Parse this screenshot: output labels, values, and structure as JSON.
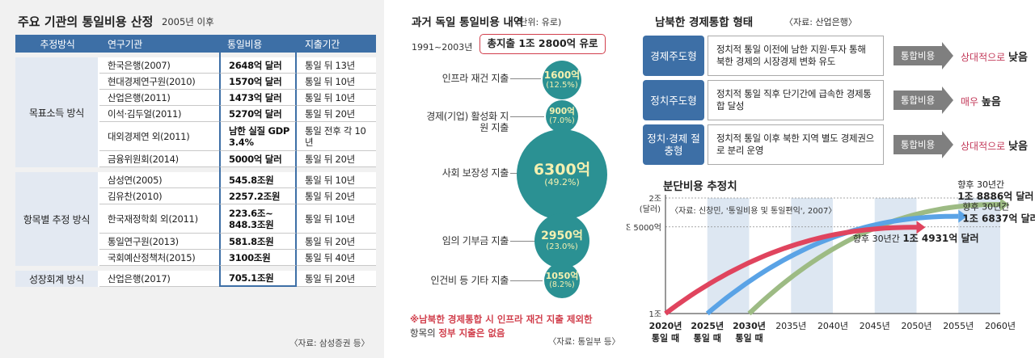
{
  "left": {
    "title": "주요 기관의 통일비용 산정",
    "subtitle": "2005년 이후",
    "headers": [
      "추정방식",
      "연구기관",
      "통일비용",
      "지출기간"
    ],
    "groups": [
      {
        "method": "목표소득 방식",
        "rows": [
          {
            "org": "한국은행(2007)",
            "cost": "2648억 달러",
            "period": "통일 뒤 13년"
          },
          {
            "org": "현대경제연구원(2010)",
            "cost": "1570억 달러",
            "period": "통일 뒤 10년"
          },
          {
            "org": "산업은행(2011)",
            "cost": "1473억 달러",
            "period": "통일 뒤 10년"
          },
          {
            "org": "이석·김두얼(2011)",
            "cost": "5270억 달러",
            "period": "통일 뒤 20년"
          },
          {
            "org": "대외경제연 외(2011)",
            "cost": "남한 실질 GDP 3.4%",
            "period": "통일 전후 각 10년"
          },
          {
            "org": "금융위원회(2014)",
            "cost": "5000억 달러",
            "period": "통일 뒤 20년"
          }
        ]
      },
      {
        "method": "항목별 추정 방식",
        "rows": [
          {
            "org": "삼성연(2005)",
            "cost": "545.8조원",
            "period": "통일 뒤 10년"
          },
          {
            "org": "김유찬(2010)",
            "cost": "2257.2조원",
            "period": "통일 뒤 20년"
          },
          {
            "org": "한국재정학회 외(2011)",
            "cost": "223.6조~ 848.3조원",
            "period": "통일 뒤 10년"
          },
          {
            "org": "통일연구원(2013)",
            "cost": "581.8조원",
            "period": "통일 뒤 20년"
          },
          {
            "org": "국회예산정책처(2015)",
            "cost": "3100조원",
            "period": "통일 뒤 40년"
          }
        ]
      },
      {
        "method": "성장회계 방식",
        "rows": [
          {
            "org": "산업은행(2017)",
            "cost": "705.1조원",
            "period": "통일 뒤 20년"
          }
        ]
      }
    ],
    "source": "〈자료: 삼성증권 등〉"
  },
  "middle": {
    "title": "과거 독일 통일비용 내역",
    "unit": "(단위: 유로)",
    "period": "1991~2003년",
    "total": "총지출 1조 2800억 유로",
    "items": [
      {
        "label": "인프라 재건 지출",
        "value": "1600억",
        "pct": "(12.5%)",
        "amount": 1600
      },
      {
        "label": "경제(기업) 활성화 지원 지출",
        "value": "900억",
        "pct": "(7.0%)",
        "amount": 900
      },
      {
        "label": "사회 보장성 지출",
        "value": "6300억",
        "pct": "(49.2%)",
        "amount": 6300
      },
      {
        "label": "임의 기부금 지출",
        "value": "2950억",
        "pct": "(23.0%)",
        "amount": 2950
      },
      {
        "label": "인건비 등 기타 지출",
        "value": "1050억",
        "pct": "(8.2%)",
        "amount": 1050
      }
    ],
    "note_red": "※남북한 경제통합 시 인프라 재건 지출 제외한",
    "note_line2_a": "항목의 ",
    "note_line2_b": "정부 지출은 없음",
    "source": "〈자료: 통일부 등〉"
  },
  "right": {
    "title": "남북한 경제통합 형태",
    "source": "〈자료: 산업은행〉",
    "forms": [
      {
        "key": "경제주도형",
        "desc": "정치적 통일 이전에 남한 지원·투자 통해 북한 경제의 시장경제 변화 유도",
        "arrow": "통합비용",
        "result_pre": "상대적으로 ",
        "result_bold": "낮음"
      },
      {
        "key": "정치주도형",
        "desc": "정치적 통일 직후 단기간에 급속한 경제통합 달성",
        "arrow": "통합비용",
        "result_pre": "매우 ",
        "result_bold": "높음"
      },
      {
        "key": "정치·경제 절충형",
        "desc": "정치적 통일 이후 북한 지역 별도 경제권으로 분리 운영",
        "arrow": "통합비용",
        "result_pre": "상대적으로 ",
        "result_bold": "낮음"
      }
    ]
  },
  "chart_data": {
    "type": "line",
    "title": "분단비용 추정치",
    "annotation": "〈자료: 신창민, '통일비용 및 통일편익', 2007〉",
    "xlabel": "",
    "ylabel": "",
    "y_unit_label": "(달러)",
    "xlim": [
      2020,
      2060
    ],
    "x_ticks": [
      2020,
      2025,
      2030,
      2035,
      2040,
      2045,
      2050,
      2055,
      2060
    ],
    "x_tick_labels": [
      "2020년",
      "2025년",
      "2030년",
      "2035년",
      "2040년",
      "2045년",
      "2050년",
      "2055년",
      "2060년"
    ],
    "x_tick_sublabels": [
      "통일 때",
      "통일 때",
      "통일 때",
      "",
      "",
      "",
      "",
      "",
      ""
    ],
    "ylim": [
      0,
      2
    ],
    "y_ticks": [
      0,
      1.5,
      2
    ],
    "y_tick_labels": [
      "1조",
      "1조 5000억",
      "2조"
    ],
    "grid": "dashed at 1조 5000억 and 2조",
    "background": "alternating vertical bands per 5-year interval",
    "series": [
      {
        "start": 2020,
        "end": 2050,
        "end_value": 1.4931,
        "color": "#e0445e",
        "label_pre": "향후 30년간 ",
        "label_value": "1조 4931억 달러"
      },
      {
        "start": 2025,
        "end": 2055,
        "end_value": 1.6837,
        "color": "#5aa3e6",
        "label_pre": "향후 30년간",
        "label_value": "1조 6837억 달러"
      },
      {
        "start": 2030,
        "end": 2060,
        "end_value": 1.8886,
        "color": "#9dbb84",
        "label_pre": "향후 30년간",
        "label_value": "1조 8886억 달러"
      }
    ]
  }
}
